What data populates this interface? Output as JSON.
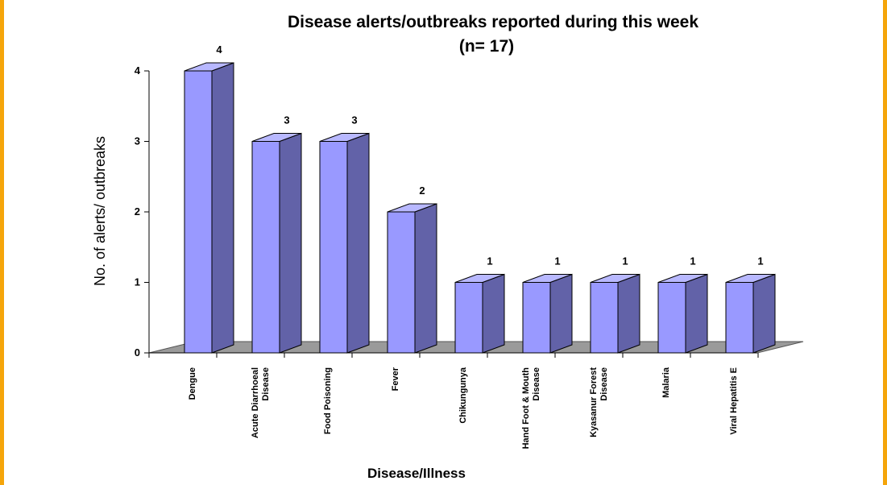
{
  "colors": {
    "frame": "#f5a50a",
    "bar_front": "#9999ff",
    "bar_side": "#6262a8",
    "bar_top": "#b8b8ff",
    "floor": "#9a9a9a"
  },
  "chart_data": {
    "type": "bar",
    "title": "Disease alerts/outbreaks reported during this week",
    "subtitle": "(n= 17)",
    "xlabel": "Disease/Illness",
    "ylabel": "No. of alerts/ outbreaks",
    "ylim": [
      0,
      4
    ],
    "yticks": [
      "0",
      "1",
      "2",
      "3",
      "4"
    ],
    "grid": false,
    "legend": "none",
    "categories": [
      [
        "Dengue"
      ],
      [
        "Acute Diarrhoeal",
        "Disease"
      ],
      [
        "Food Poisoning"
      ],
      [
        "Fever"
      ],
      [
        "Chikungunya"
      ],
      [
        "Hand Foot & Mouth",
        "Disease"
      ],
      [
        "Kyasanur Forest",
        "Disease"
      ],
      [
        "Malaria"
      ],
      [
        "Viral Hepatitis E"
      ]
    ],
    "values": [
      4,
      3,
      3,
      2,
      1,
      1,
      1,
      1,
      1
    ],
    "data_labels": [
      "4",
      "3",
      "3",
      "2",
      "1",
      "1",
      "1",
      "1",
      "1"
    ]
  }
}
